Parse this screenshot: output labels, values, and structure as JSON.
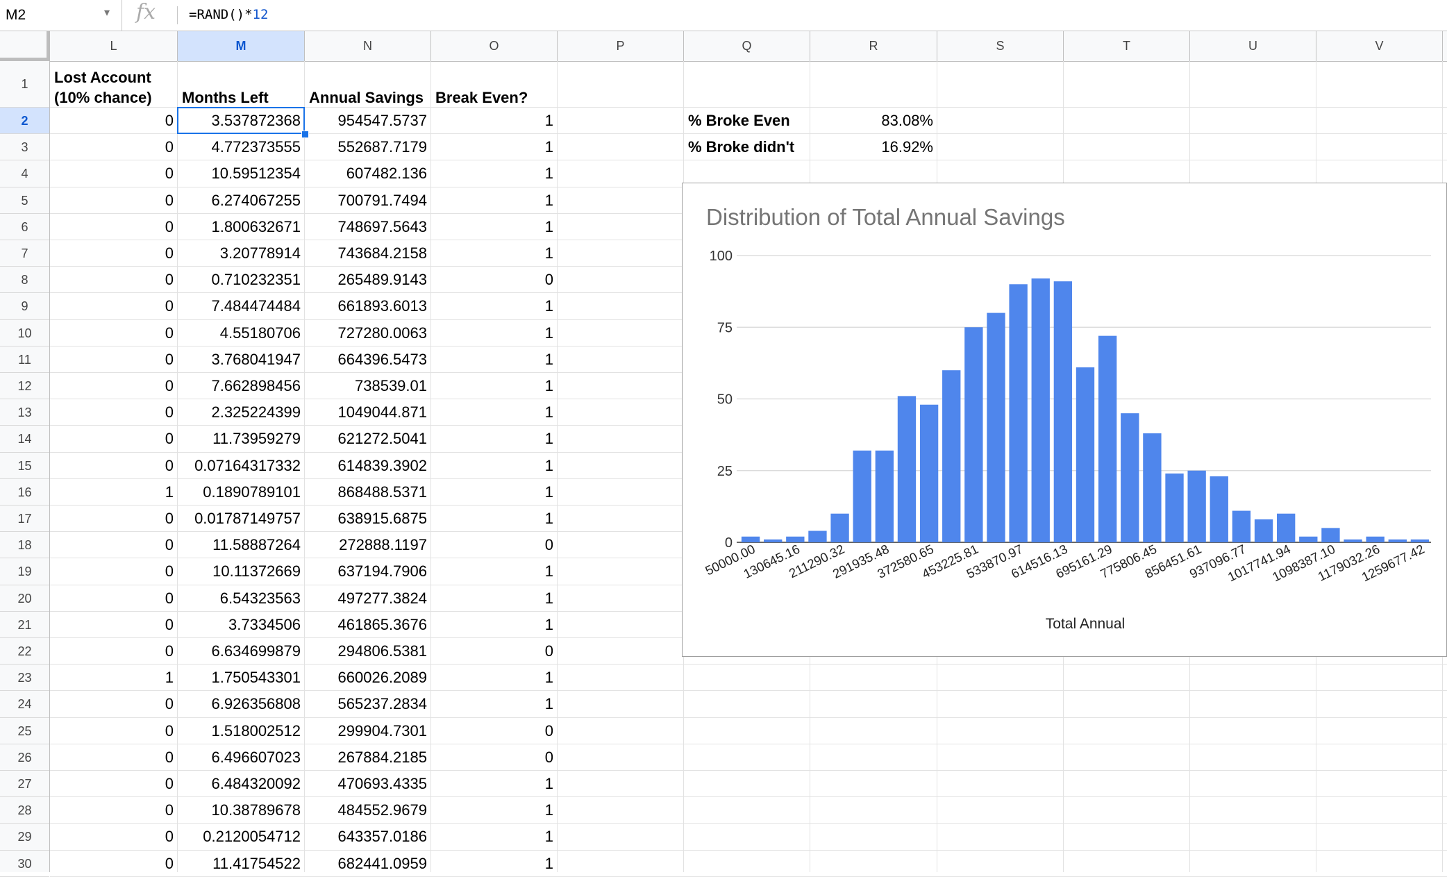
{
  "name_box": {
    "value": "M2"
  },
  "formula": {
    "prefix": "=RAND()*",
    "number": "12"
  },
  "columns": [
    "L",
    "M",
    "N",
    "O",
    "P",
    "Q",
    "R",
    "S",
    "T",
    "U",
    "V"
  ],
  "rows": [
    "1",
    "2",
    "3",
    "4",
    "5",
    "6",
    "7",
    "8",
    "9",
    "10",
    "11",
    "12",
    "13",
    "14",
    "15",
    "16",
    "17",
    "18",
    "19",
    "20",
    "21",
    "22",
    "23",
    "24",
    "25",
    "26",
    "27",
    "28",
    "29",
    "30"
  ],
  "headers": {
    "L": "Lost Account (10% chance)",
    "M": "Months Left",
    "N": "Annual Savings",
    "O": "Break Even?"
  },
  "table": [
    [
      "0",
      "3.537872368",
      "954547.5737",
      "1"
    ],
    [
      "0",
      "4.772373555",
      "552687.7179",
      "1"
    ],
    [
      "0",
      "10.59512354",
      "607482.136",
      "1"
    ],
    [
      "0",
      "6.274067255",
      "700791.7494",
      "1"
    ],
    [
      "0",
      "1.800632671",
      "748697.5643",
      "1"
    ],
    [
      "0",
      "3.20778914",
      "743684.2158",
      "1"
    ],
    [
      "0",
      "0.710232351",
      "265489.9143",
      "0"
    ],
    [
      "0",
      "7.484474484",
      "661893.6013",
      "1"
    ],
    [
      "0",
      "4.55180706",
      "727280.0063",
      "1"
    ],
    [
      "0",
      "3.768041947",
      "664396.5473",
      "1"
    ],
    [
      "0",
      "7.662898456",
      "738539.01",
      "1"
    ],
    [
      "0",
      "2.325224399",
      "1049044.871",
      "1"
    ],
    [
      "0",
      "11.73959279",
      "621272.5041",
      "1"
    ],
    [
      "0",
      "0.07164317332",
      "614839.3902",
      "1"
    ],
    [
      "1",
      "0.1890789101",
      "868488.5371",
      "1"
    ],
    [
      "0",
      "0.01787149757",
      "638915.6875",
      "1"
    ],
    [
      "0",
      "11.58887264",
      "272888.1197",
      "0"
    ],
    [
      "0",
      "10.11372669",
      "637194.7906",
      "1"
    ],
    [
      "0",
      "6.54323563",
      "497277.3824",
      "1"
    ],
    [
      "0",
      "3.7334506",
      "461865.3676",
      "1"
    ],
    [
      "0",
      "6.634699879",
      "294806.5381",
      "0"
    ],
    [
      "1",
      "1.750543301",
      "660026.2089",
      "1"
    ],
    [
      "0",
      "6.926356808",
      "565237.2834",
      "1"
    ],
    [
      "0",
      "1.518002512",
      "299904.7301",
      "0"
    ],
    [
      "0",
      "6.496607023",
      "267884.2185",
      "0"
    ],
    [
      "0",
      "6.484320092",
      "470693.4335",
      "1"
    ],
    [
      "0",
      "10.38789678",
      "484552.9679",
      "1"
    ],
    [
      "0",
      "0.2120054712",
      "643357.0186",
      "1"
    ],
    [
      "0",
      "11.41754522",
      "682441.0959",
      "1"
    ]
  ],
  "summary": [
    {
      "label": "% Broke Even",
      "value": "83.08%"
    },
    {
      "label": "% Broke didn't",
      "value": "16.92%"
    }
  ],
  "chart_data": {
    "type": "bar",
    "title": "Distribution of Total Annual Savings",
    "xlabel": "Total Annual",
    "ylabel": "",
    "ylim": [
      0,
      100
    ],
    "yticks": [
      0,
      25,
      50,
      75,
      100
    ],
    "tick_labels": [
      "50000.00",
      "130645.16",
      "211290.32",
      "291935.48",
      "372580.65",
      "453225.81",
      "533870.97",
      "614516.13",
      "695161.29",
      "775806.45",
      "856451.61",
      "937096.77",
      "1017741.94",
      "1098387.10",
      "1179032.26",
      "1259677.42"
    ],
    "values": [
      2,
      1,
      2,
      4,
      10,
      32,
      32,
      51,
      48,
      60,
      75,
      80,
      90,
      92,
      91,
      61,
      72,
      45,
      38,
      24,
      25,
      23,
      11,
      8,
      10,
      2,
      5,
      1,
      2,
      1,
      1
    ],
    "bar_color": "#4f86ec",
    "grid": true
  }
}
